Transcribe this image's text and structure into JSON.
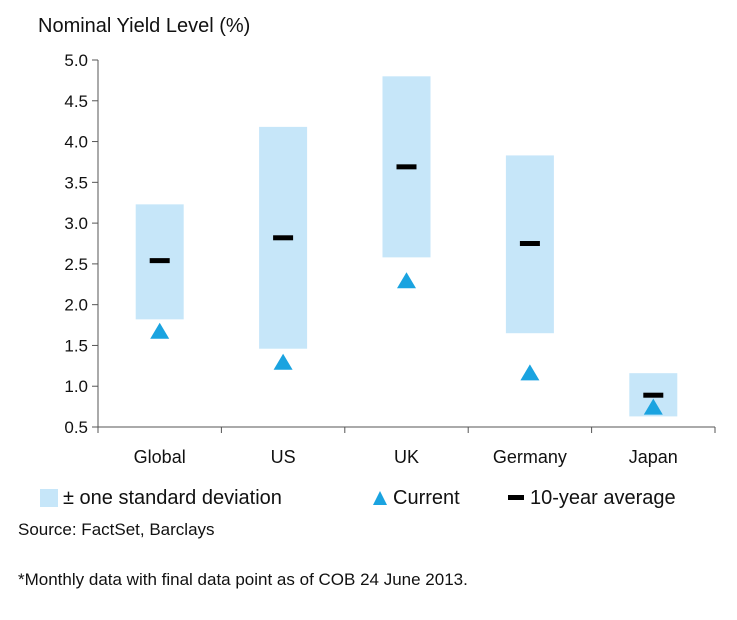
{
  "chart_data": {
    "type": "range-bar",
    "title": "Nominal Yield Level (%)",
    "ylim": [
      0.5,
      5.0
    ],
    "yticks": [
      "5.0",
      "4.5",
      "4.0",
      "3.5",
      "3.0",
      "2.5",
      "2.0",
      "1.5",
      "1.0",
      "0.5"
    ],
    "categories": [
      "Global",
      "US",
      "UK",
      "Germany",
      "Japan"
    ],
    "series": [
      {
        "name": "± one standard deviation",
        "kind": "range",
        "low": [
          1.82,
          1.46,
          2.58,
          1.65,
          0.63
        ],
        "high": [
          3.23,
          4.18,
          4.8,
          3.83,
          1.16
        ]
      },
      {
        "name": "Current",
        "kind": "marker-triangle",
        "values": [
          1.68,
          1.3,
          2.3,
          1.17,
          0.75
        ]
      },
      {
        "name": "10-year average",
        "kind": "marker-dash",
        "values": [
          2.54,
          2.82,
          3.69,
          2.75,
          0.89
        ]
      }
    ],
    "colors": {
      "range": "#c6e6f9",
      "current": "#1aa3e0",
      "average": "#000000"
    },
    "legend_position": "bottom"
  },
  "footer": {
    "source": "Source: FactSet, Barclays",
    "note": "*Monthly data with final data point as of COB 24 June 2013."
  }
}
